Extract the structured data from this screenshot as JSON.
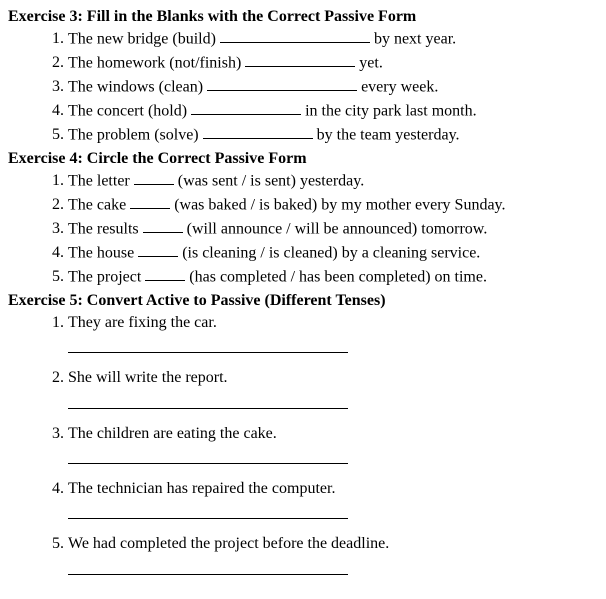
{
  "ex3": {
    "title": "Exercise 3: Fill in the Blanks with the Correct Passive Form",
    "items": [
      {
        "pre": "The new bridge (build) ",
        "post": " by next year."
      },
      {
        "pre": "The homework (not/finish) ",
        "post": " yet."
      },
      {
        "pre": "The windows (clean) ",
        "post": " every week."
      },
      {
        "pre": "The concert (hold) ",
        "post": " in the city park last month."
      },
      {
        "pre": "The problem (solve) ",
        "post": " by the team yesterday."
      }
    ]
  },
  "ex4": {
    "title": "Exercise 4: Circle the Correct Passive Form",
    "items": [
      {
        "pre": "The letter ",
        "post": " (was sent / is sent) yesterday."
      },
      {
        "pre": "The cake ",
        "post": " (was baked / is baked) by my mother every Sunday."
      },
      {
        "pre": "The results ",
        "post": " (will announce / will be announced) tomorrow."
      },
      {
        "pre": "The house ",
        "post": " (is cleaning / is cleaned) by a cleaning service."
      },
      {
        "pre": "The project ",
        "post": " (has completed / has been completed) on time."
      }
    ]
  },
  "ex5": {
    "title": "Exercise 5: Convert Active to Passive (Different Tenses)",
    "items": [
      "They are fixing the car.",
      "She will write the report.",
      "The children are eating the cake.",
      "The technician has repaired the computer.",
      "We had completed the project before the deadline."
    ]
  }
}
